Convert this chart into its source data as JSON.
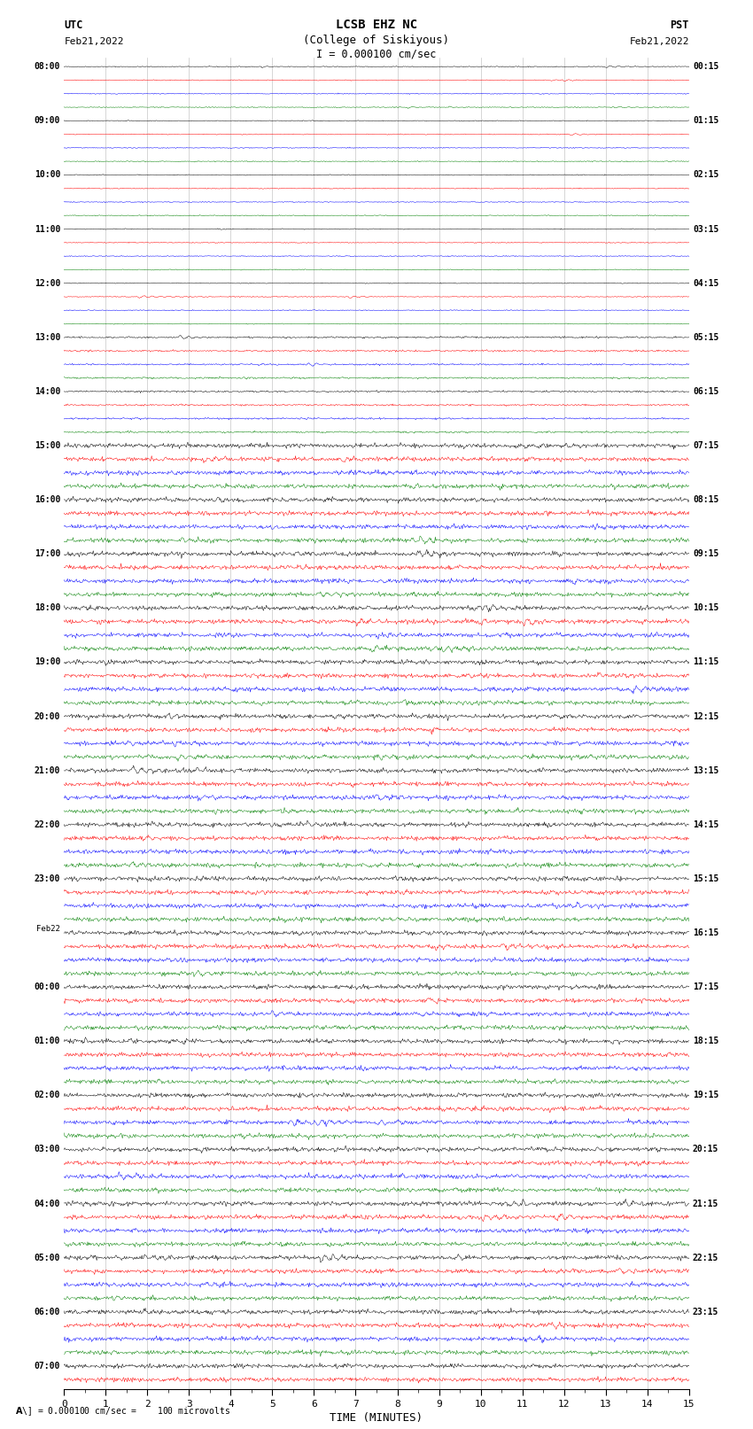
{
  "title_line1": "LCSB EHZ NC",
  "title_line2": "(College of Siskiyous)",
  "title_line3": "I = 0.000100 cm/sec",
  "utc_label": "UTC",
  "utc_date": "Feb21,2022",
  "pst_label": "PST",
  "pst_date": "Feb21,2022",
  "xlabel": "TIME (MINUTES)",
  "footer": "\\A\\] = 0.000100 cm/sec =    100 microvolts",
  "bg_color": "#ffffff",
  "trace_colors": [
    "black",
    "red",
    "blue",
    "green"
  ],
  "n_traces": 98,
  "minutes_per_trace": 15,
  "left_times_utc": [
    "08:00",
    "",
    "",
    "",
    "09:00",
    "",
    "",
    "",
    "10:00",
    "",
    "",
    "",
    "11:00",
    "",
    "",
    "",
    "12:00",
    "",
    "",
    "",
    "13:00",
    "",
    "",
    "",
    "14:00",
    "",
    "",
    "",
    "15:00",
    "",
    "",
    "",
    "16:00",
    "",
    "",
    "",
    "17:00",
    "",
    "",
    "",
    "18:00",
    "",
    "",
    "",
    "19:00",
    "",
    "",
    "",
    "20:00",
    "",
    "",
    "",
    "21:00",
    "",
    "",
    "",
    "22:00",
    "",
    "",
    "",
    "23:00",
    "",
    "",
    "",
    "Feb22",
    "",
    "",
    "",
    "00:00",
    "",
    "",
    "",
    "01:00",
    "",
    "",
    "",
    "02:00",
    "",
    "",
    "",
    "03:00",
    "",
    "",
    "",
    "04:00",
    "",
    "",
    "",
    "05:00",
    "",
    "",
    "",
    "06:00",
    "",
    "",
    "",
    "07:00",
    "",
    "",
    ""
  ],
  "right_times_pst": [
    "00:15",
    "",
    "",
    "",
    "01:15",
    "",
    "",
    "",
    "02:15",
    "",
    "",
    "",
    "03:15",
    "",
    "",
    "",
    "04:15",
    "",
    "",
    "",
    "05:15",
    "",
    "",
    "",
    "06:15",
    "",
    "",
    "",
    "07:15",
    "",
    "",
    "",
    "08:15",
    "",
    "",
    "",
    "09:15",
    "",
    "",
    "",
    "10:15",
    "",
    "",
    "",
    "11:15",
    "",
    "",
    "",
    "12:15",
    "",
    "",
    "",
    "13:15",
    "",
    "",
    "",
    "14:15",
    "",
    "",
    "",
    "15:15",
    "",
    "",
    "",
    "16:15",
    "",
    "",
    "",
    "17:15",
    "",
    "",
    "",
    "18:15",
    "",
    "",
    "",
    "19:15",
    "",
    "",
    "",
    "20:15",
    "",
    "",
    "",
    "21:15",
    "",
    "",
    "",
    "22:15",
    "",
    "",
    "",
    "23:15",
    "",
    "",
    "",
    "",
    "",
    "",
    ""
  ],
  "seed": 42,
  "samples_per_minute": 60
}
